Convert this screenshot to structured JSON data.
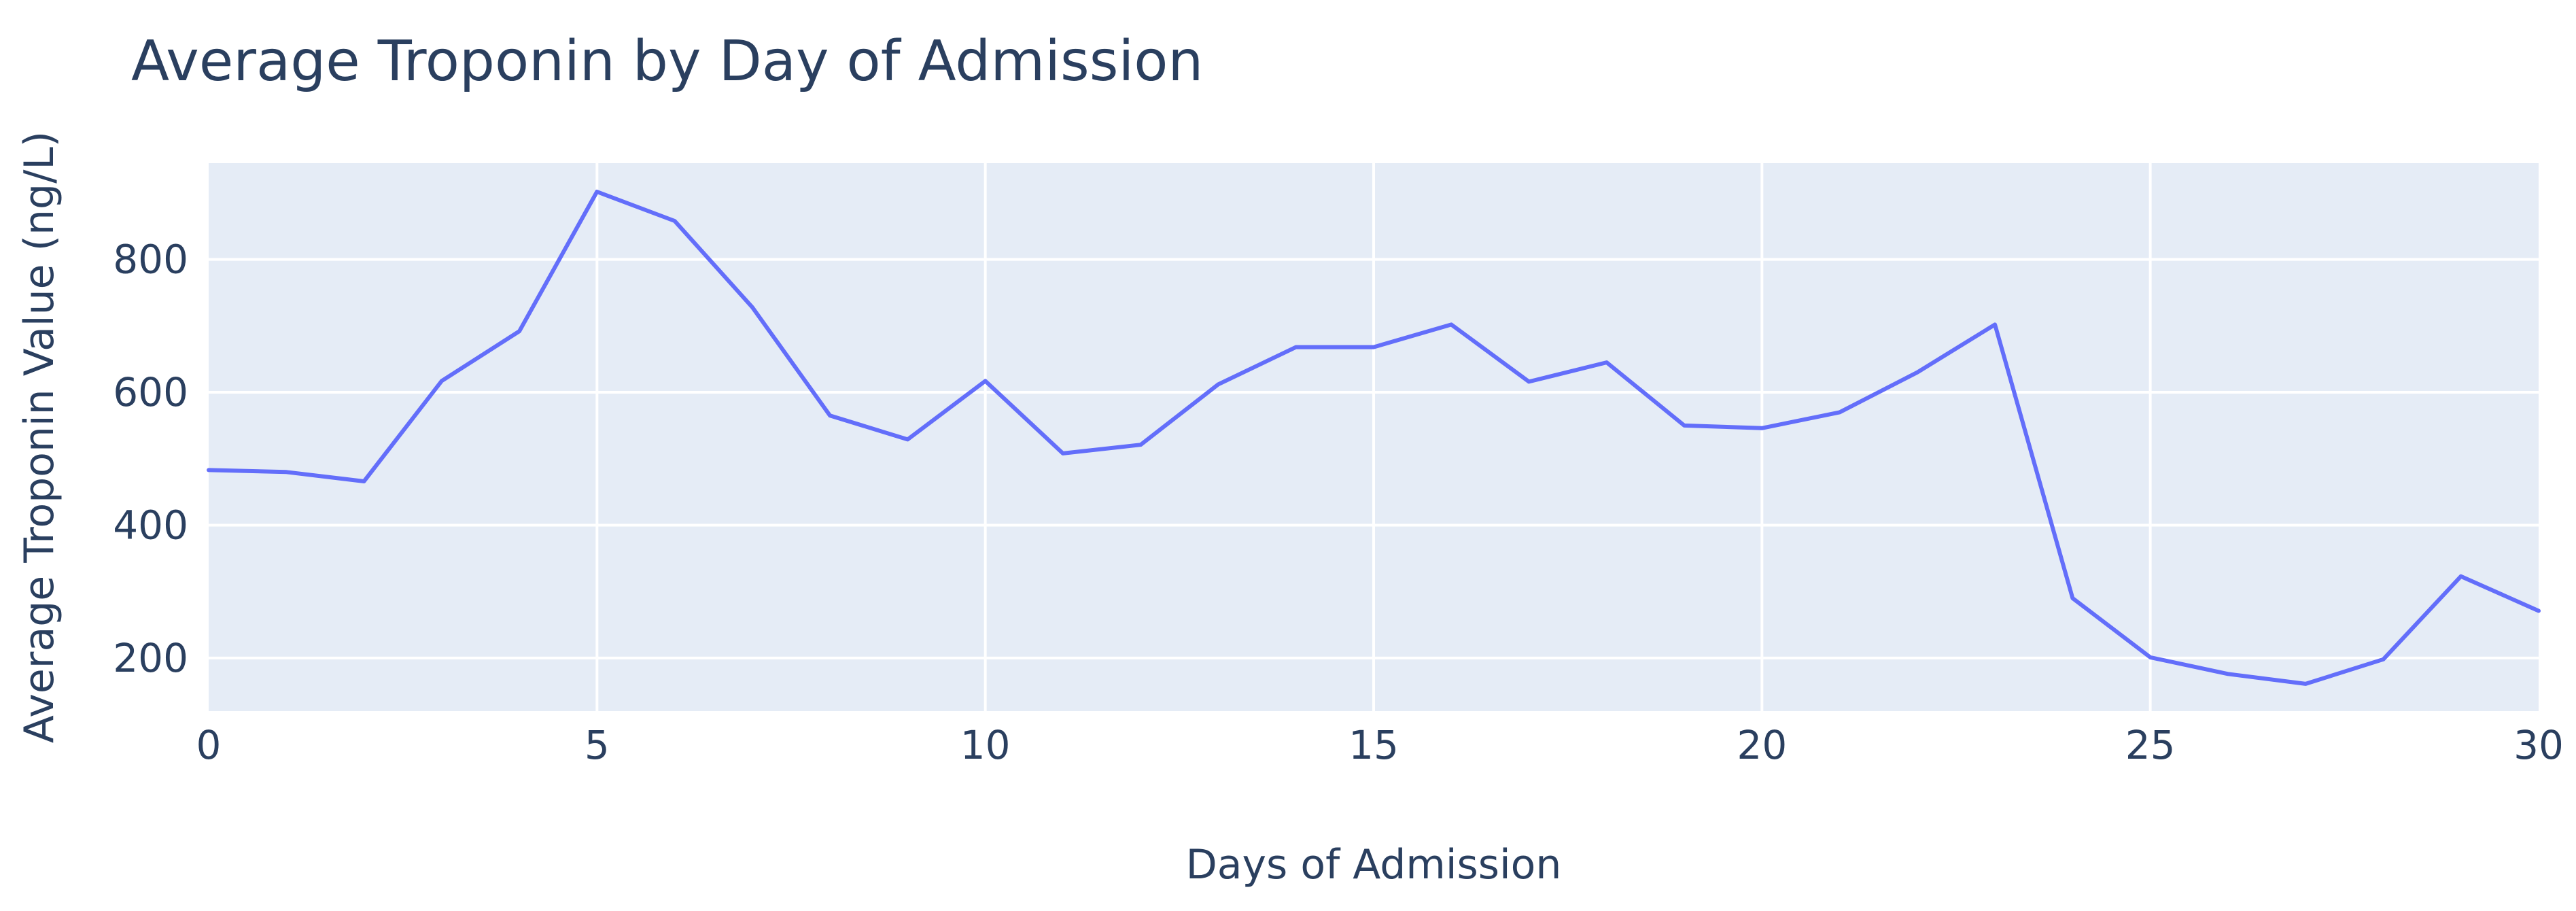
{
  "chart_data": {
    "type": "line",
    "title": "Average Troponin by Day of Admission",
    "xlabel": "Days of Admission",
    "ylabel": "Average Troponin Value (ng/L)",
    "xlim": [
      0,
      30
    ],
    "ylim": [
      120,
      945
    ],
    "x_ticks": [
      0,
      5,
      10,
      15,
      20,
      25,
      30
    ],
    "y_ticks": [
      200,
      400,
      600,
      800
    ],
    "grid": true,
    "legend": "none",
    "series": [
      {
        "color": "#636efa",
        "x": [
          0,
          1,
          2,
          3,
          4,
          5,
          6,
          7,
          8,
          9,
          10,
          11,
          12,
          13,
          14,
          15,
          16,
          17,
          18,
          19,
          20,
          21,
          22,
          23,
          24,
          25,
          26,
          27,
          28,
          29,
          30
        ],
        "y": [
          483,
          480,
          466,
          617,
          692,
          902,
          858,
          728,
          565,
          529,
          617,
          508,
          521,
          612,
          668,
          668,
          702,
          616,
          645,
          550,
          546,
          570,
          630,
          702,
          290,
          201,
          176,
          161,
          198,
          323,
          271
        ]
      }
    ]
  },
  "colors": {
    "plot_background": "#e5ecf6",
    "grid": "#ffffff",
    "text": "#2a3f5f",
    "line": "#636efa"
  }
}
